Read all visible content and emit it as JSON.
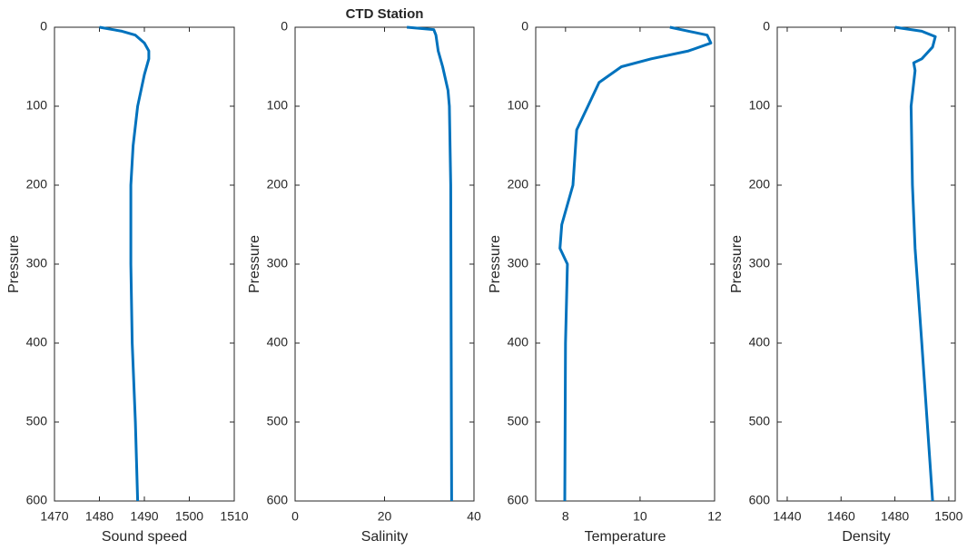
{
  "chart_data": [
    {
      "type": "line",
      "xlabel": "Sound speed",
      "ylabel": "Pressure",
      "color": "#0072bd",
      "y": [
        0,
        5,
        10,
        20,
        30,
        40,
        60,
        100,
        150,
        200,
        300,
        400,
        500,
        600
      ],
      "x": [
        1480,
        1485,
        1488,
        1490,
        1491,
        1491,
        1490,
        1488.5,
        1487.5,
        1487,
        1487,
        1487.3,
        1488,
        1488.5
      ],
      "xlim": [
        1470,
        1510
      ],
      "xticks": [
        1470,
        1480,
        1490,
        1500,
        1510
      ],
      "ylim": [
        0,
        600
      ],
      "yticks": [
        0,
        100,
        200,
        300,
        400,
        500,
        600
      ],
      "y_reversed": true
    },
    {
      "type": "line",
      "title": "CTD Station",
      "xlabel": "Salinity",
      "ylabel": "Pressure",
      "color": "#0072bd",
      "y": [
        0,
        3,
        10,
        30,
        50,
        80,
        100,
        200,
        400,
        600
      ],
      "x": [
        25,
        31,
        31.5,
        32,
        33,
        34.2,
        34.5,
        34.8,
        34.9,
        35
      ],
      "xlim": [
        0,
        40
      ],
      "xticks": [
        0,
        20,
        40
      ],
      "ylim": [
        0,
        600
      ],
      "yticks": [
        0,
        100,
        200,
        300,
        400,
        500,
        600
      ],
      "y_reversed": true
    },
    {
      "type": "line",
      "xlabel": "Temperature",
      "ylabel": "Pressure",
      "color": "#0072bd",
      "y": [
        0,
        10,
        20,
        30,
        40,
        50,
        70,
        100,
        130,
        200,
        250,
        280,
        300,
        400,
        600
      ],
      "x": [
        10.8,
        11.8,
        11.9,
        11.3,
        10.3,
        9.5,
        8.9,
        8.6,
        8.3,
        8.2,
        7.9,
        7.85,
        8.05,
        8.0,
        7.98
      ],
      "xlim": [
        7.2,
        12
      ],
      "xticks": [
        8,
        10,
        12
      ],
      "ylim": [
        0,
        600
      ],
      "yticks": [
        0,
        100,
        200,
        300,
        400,
        500,
        600
      ],
      "y_reversed": true
    },
    {
      "type": "line",
      "xlabel": "Density",
      "ylabel": "Pressure",
      "color": "#0072bd",
      "y": [
        0,
        5,
        12,
        25,
        40,
        45,
        55,
        100,
        200,
        280,
        400,
        600
      ],
      "x": [
        1480,
        1490,
        1495,
        1494,
        1490,
        1487,
        1487.5,
        1486,
        1486.5,
        1487.5,
        1490,
        1494
      ],
      "xlim": [
        1436.3,
        1502.4
      ],
      "xticks": [
        1440,
        1460,
        1480,
        1500
      ],
      "ylim": [
        0,
        600
      ],
      "yticks": [
        0,
        100,
        200,
        300,
        400,
        500,
        600
      ],
      "y_reversed": true
    }
  ]
}
